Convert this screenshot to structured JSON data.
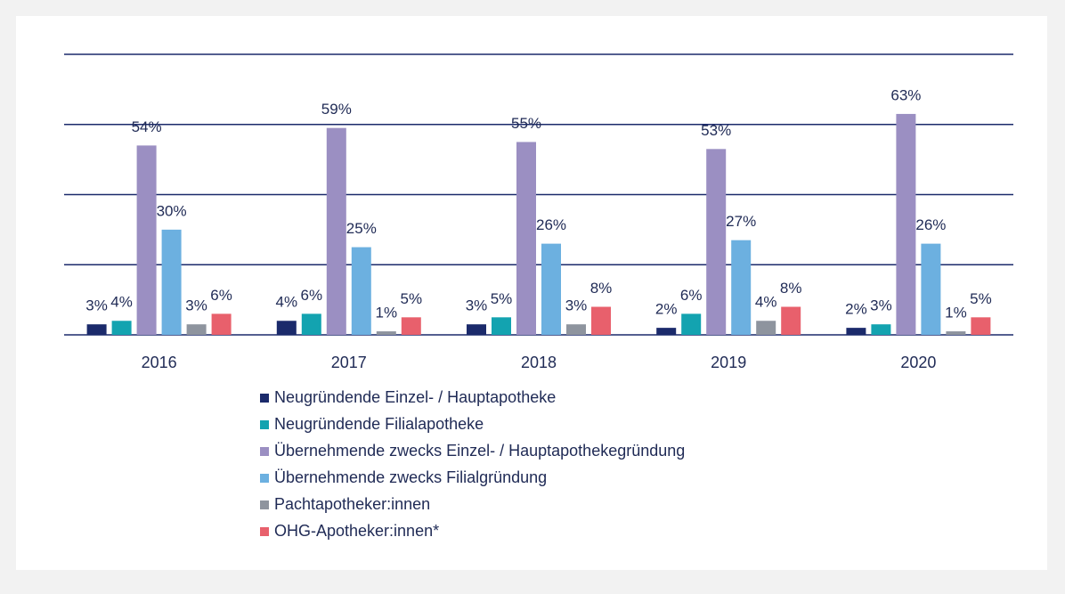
{
  "chart_data": {
    "type": "bar",
    "categories": [
      "2016",
      "2017",
      "2018",
      "2019",
      "2020"
    ],
    "series": [
      {
        "name": "Neugründende Einzel- / Hauptapotheke",
        "color": "#1b2a6b",
        "values": [
          3,
          4,
          3,
          2,
          2
        ],
        "value_labels": [
          "3%",
          "4%",
          "3%",
          "2%",
          "2%"
        ]
      },
      {
        "name": "Neugründende Filialapotheke",
        "color": "#13a3b0",
        "values": [
          4,
          6,
          5,
          6,
          3
        ],
        "value_labels": [
          "4%",
          "6%",
          "5%",
          "6%",
          "3%"
        ]
      },
      {
        "name": "Übernehmende zwecks Einzel- / Hauptapothekegründung",
        "color": "#9b8fc2",
        "values": [
          54,
          59,
          55,
          53,
          63
        ],
        "value_labels": [
          "54%",
          "59%",
          "55%",
          "53%",
          "63%"
        ]
      },
      {
        "name": "Übernehmende zwecks Filialgründung",
        "color": "#6cb0e0",
        "values": [
          30,
          25,
          26,
          27,
          26
        ],
        "value_labels": [
          "30%",
          "25%",
          "26%",
          "27%",
          "26%"
        ]
      },
      {
        "name": "Pachtapotheker:innen",
        "color": "#8e949e",
        "values": [
          3,
          1,
          3,
          4,
          1
        ],
        "value_labels": [
          "3%",
          "1%",
          "3%",
          "4%",
          "1%"
        ]
      },
      {
        "name": "OHG-Apotheker:innen*",
        "color": "#e8606c",
        "values": [
          6,
          5,
          8,
          8,
          5
        ],
        "value_labels": [
          "6%",
          "5%",
          "8%",
          "8%",
          "5%"
        ]
      }
    ],
    "ylim": [
      0,
      80
    ],
    "yticks": [
      0,
      20,
      40,
      60,
      80
    ],
    "grid": true
  }
}
